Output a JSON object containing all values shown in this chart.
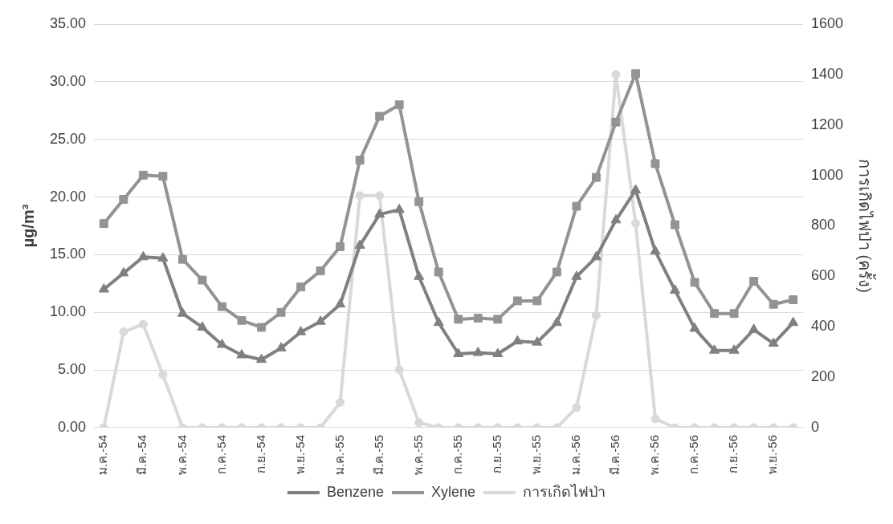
{
  "chart_data": {
    "type": "line",
    "ylabel": "µg/m³",
    "y2label": "การเกิดไฟป่า (ครั้ง)",
    "categories": [
      "ม.ค.-54",
      null,
      "มี.ค.-54",
      null,
      "พ.ค.-54",
      null,
      "ก.ค.-54",
      null,
      "ก.ย.-54",
      null,
      "พ.ย.-54",
      null,
      "ม.ค.-55",
      null,
      "มี.ค.-55",
      null,
      "พ.ค.-55",
      null,
      "ก.ค.-55",
      null,
      "ก.ย.-55",
      null,
      "พ.ย.-55",
      null,
      "ม.ค.-56",
      null,
      "มี.ค.-56",
      null,
      "พ.ค.-56",
      null,
      "ก.ค.-56",
      null,
      "ก.ย.-56",
      null,
      "พ.ย.-56",
      null
    ],
    "series": [
      {
        "name": "Benzene",
        "color": "#808080",
        "marker": "triangle",
        "values": [
          12.0,
          13.4,
          14.8,
          14.7,
          9.9,
          8.7,
          7.2,
          6.3,
          5.9,
          6.9,
          8.3,
          9.2,
          10.7,
          15.8,
          18.5,
          18.9,
          13.1,
          9.1,
          6.4,
          6.5,
          6.4,
          7.5,
          7.4,
          9.1,
          13.1,
          14.8,
          18.0,
          20.6,
          15.3,
          11.9,
          8.6,
          6.7,
          6.7,
          8.5,
          7.3,
          9.1
        ]
      },
      {
        "name": "Xylene",
        "color": "#939393",
        "marker": "square",
        "values": [
          17.7,
          19.8,
          21.9,
          21.8,
          14.6,
          12.8,
          10.5,
          9.3,
          8.7,
          10.0,
          12.2,
          13.6,
          15.7,
          23.2,
          27.0,
          28.0,
          19.6,
          13.5,
          9.4,
          9.5,
          9.4,
          11.0,
          11.0,
          13.5,
          19.2,
          21.7,
          26.5,
          30.7,
          22.9,
          17.6,
          12.6,
          9.9,
          9.9,
          12.7,
          10.7,
          11.1
        ]
      },
      {
        "name": "การเกิดไฟป่า",
        "color": "#d9d9d9",
        "marker": "circle",
        "axis": "y2",
        "values": [
          0,
          380,
          410,
          210,
          0,
          0,
          0,
          0,
          0,
          0,
          0,
          0,
          100,
          920,
          920,
          230,
          20,
          0,
          0,
          0,
          0,
          0,
          0,
          0,
          80,
          445,
          1400,
          810,
          35,
          0,
          0,
          0,
          0,
          0,
          0,
          0
        ]
      }
    ],
    "ylim": [
      0,
      35
    ],
    "yticks": [
      {
        "value": 0,
        "label": "0.00"
      },
      {
        "value": 5,
        "label": "5.00"
      },
      {
        "value": 10,
        "label": "10.00"
      },
      {
        "value": 15,
        "label": "15.00"
      },
      {
        "value": 20,
        "label": "20.00"
      },
      {
        "value": 25,
        "label": "25.00"
      },
      {
        "value": 30,
        "label": "30.00"
      },
      {
        "value": 35,
        "label": "35.00"
      }
    ],
    "y2lim": [
      0,
      1600
    ],
    "y2ticks": [
      0,
      200,
      400,
      600,
      800,
      1000,
      1200,
      1400,
      1600
    ],
    "grid": "y",
    "legend": "bottom",
    "line_style": "solid"
  }
}
